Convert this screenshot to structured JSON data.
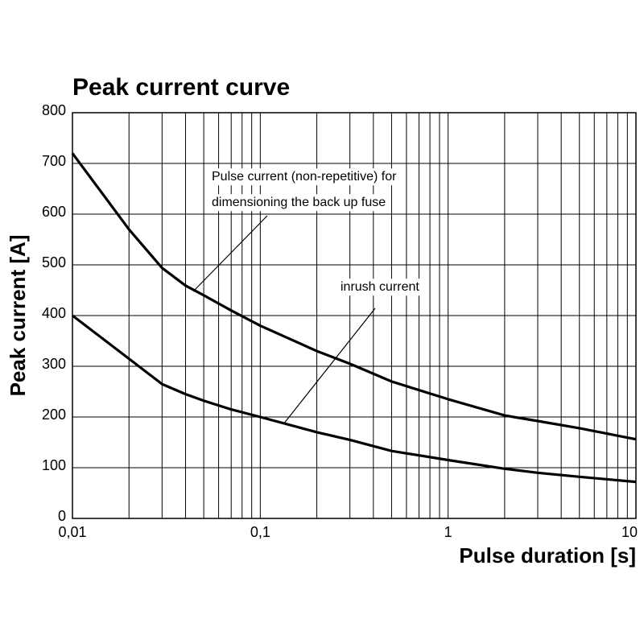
{
  "chart_data": {
    "type": "line",
    "title": "Peak current curve",
    "x_label": "Pulse duration [s]",
    "y_label": "Peak current [A]",
    "xscale": "log",
    "xlim": [
      0.01,
      10
    ],
    "ylim": [
      0,
      800
    ],
    "xticks": [
      {
        "value": 0.01,
        "label": "0,01"
      },
      {
        "value": 0.1,
        "label": "0,1"
      },
      1,
      10
    ],
    "x_gridlines": [
      0.02,
      0.03,
      0.04,
      0.05,
      0.06,
      0.07,
      0.08,
      0.09,
      0.2,
      0.3,
      0.4,
      0.5,
      0.6,
      0.7,
      0.8,
      0.9,
      2,
      3,
      4,
      5,
      6,
      7,
      8,
      9
    ],
    "yticks": [
      0,
      100,
      200,
      300,
      400,
      500,
      600,
      700,
      800
    ],
    "grid": true,
    "x": [
      0.01,
      0.02,
      0.03,
      0.04,
      0.05,
      0.07,
      0.1,
      0.2,
      0.3,
      0.5,
      1,
      2,
      3,
      5,
      10
    ],
    "series": [
      {
        "color": "#000000",
        "values": [
          720,
          570,
          494,
          459,
          440,
          410,
          380,
          330,
          305,
          270,
          235,
          203,
          192,
          178,
          156
        ]
      },
      {
        "color": "#000000",
        "values": [
          400,
          315,
          265,
          245,
          232,
          215,
          200,
          170,
          155,
          133,
          115,
          98,
          90,
          82,
          72
        ]
      }
    ],
    "annotations": [
      "Pulse current (non-repetitive) for",
      "dimensioning the back up fuse",
      "inrush current"
    ]
  }
}
